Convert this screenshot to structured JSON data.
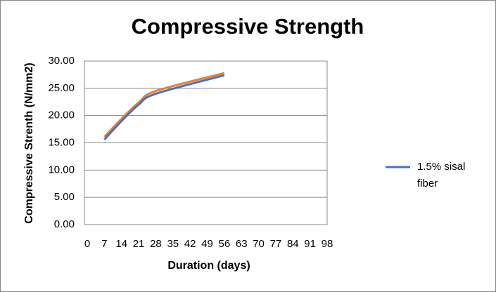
{
  "chart_data": {
    "type": "line",
    "title": "Compressive Strength",
    "x_label": "Duration (days)",
    "y_label": "Compressive Strenth (N/mm2)",
    "series": [
      {
        "name": "1.5% sisal fiber",
        "color": "#4472c4",
        "x": [
          7,
          14,
          21,
          28,
          56
        ],
        "values": [
          15.6,
          19.0,
          22.0,
          24.0,
          27.4
        ]
      },
      {
        "color": "#ed7d31",
        "x": [
          7,
          14,
          21,
          28,
          56
        ],
        "values": [
          16.1,
          19.4,
          22.4,
          24.5,
          27.8
        ]
      }
    ],
    "xlim": [
      0,
      98
    ],
    "xticks": [
      0,
      7,
      14,
      21,
      28,
      35,
      42,
      49,
      56,
      63,
      70,
      77,
      84,
      91,
      98
    ],
    "ylim": [
      0,
      30
    ],
    "yticks": [
      {
        "value": 0,
        "label": "0.00"
      },
      {
        "value": 5,
        "label": "5.00"
      },
      {
        "value": 10,
        "label": "10.00"
      },
      {
        "value": 15,
        "label": "15.00"
      },
      {
        "value": 20,
        "label": "20.00"
      },
      {
        "value": 25,
        "label": "25.00"
      },
      {
        "value": 30,
        "label": "30.00"
      }
    ],
    "grid": true
  }
}
